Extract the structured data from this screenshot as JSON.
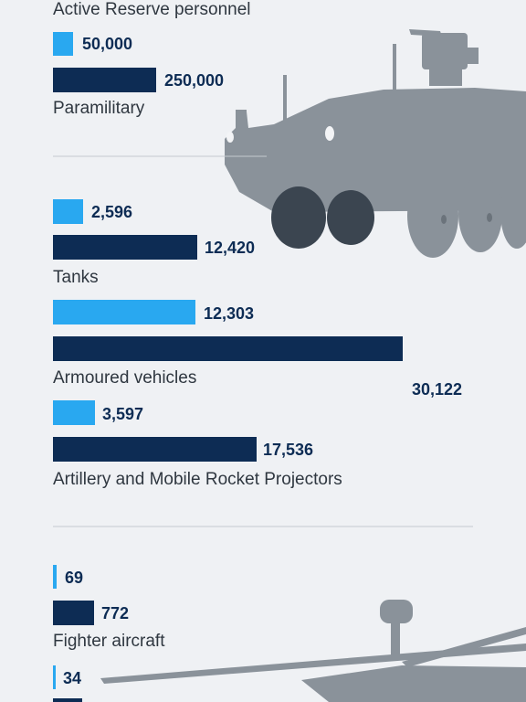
{
  "colors": {
    "light_bar": "#29a8f0",
    "dark_bar": "#0d2c54",
    "silhouette": "#8a929a",
    "background": "#eff1f4",
    "divider": "#c4c9cf"
  },
  "chart_data": {
    "type": "bar",
    "orientation": "horizontal",
    "scale_note": "each group's bars share one scale; groups are scaled independently",
    "groups": [
      {
        "label": "Active Reserve personnel",
        "values": [],
        "label_position": "above"
      },
      {
        "label": "Paramilitary",
        "values": [
          50000,
          250000
        ]
      },
      {
        "label": "Tanks",
        "values": [
          2596,
          12420
        ]
      },
      {
        "label": "Armoured vehicles",
        "values": [
          12303,
          30122
        ]
      },
      {
        "label": "Artillery and Mobile Rocket Projectors",
        "values": [
          3597,
          17536
        ]
      },
      {
        "label": "Fighter aircraft",
        "values": [
          69,
          772
        ]
      },
      {
        "label": "",
        "values": [
          34
        ]
      }
    ],
    "value_labels": [
      "50,000",
      "250,000",
      "2,596",
      "12,420",
      "12,303",
      "30,122",
      "3,597",
      "17,536",
      "69",
      "772",
      "34"
    ]
  },
  "icons": [
    "armoured-vehicle-silhouette-icon",
    "helicopter-silhouette-icon"
  ]
}
